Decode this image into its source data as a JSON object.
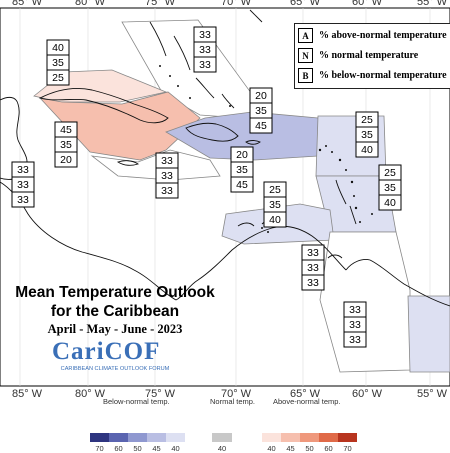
{
  "longitude_labels_top": [
    "85° W",
    "80° W",
    "75° W",
    "70° W",
    "65° W",
    "60° W",
    "55° W"
  ],
  "longitude_labels_bottom": [
    "85° W",
    "80° W",
    "75° W",
    "70° W",
    "65° W",
    "60° W",
    "55° W"
  ],
  "legend": {
    "above_letter": "A",
    "above_text": "% above-normal temperature",
    "normal_letter": "N",
    "normal_text": "% normal temperature",
    "below_letter": "B",
    "below_text": "% below-normal temperature"
  },
  "title_line1": "Mean Temperature Outlook",
  "title_line2": "for the Caribbean",
  "subtitle": "April - May - June - 2023",
  "logo": {
    "name": "CariCOF",
    "tagline": "CARIBBEAN CLIMATE OUTLOOK FORUM",
    "color": "#3a6fb7"
  },
  "probability_boxes": [
    {
      "region": "northwest-caribbean-belize",
      "above": "33",
      "normal": "33",
      "below": "33"
    },
    {
      "region": "bahamas",
      "above": "33",
      "normal": "33",
      "below": "33"
    },
    {
      "region": "cuba-west",
      "above": "40",
      "normal": "35",
      "below": "25"
    },
    {
      "region": "cuba-central-east",
      "above": "45",
      "normal": "35",
      "below": "20"
    },
    {
      "region": "turks-caicos",
      "above": "20",
      "normal": "35",
      "below": "45"
    },
    {
      "region": "hispaniola",
      "above": "20",
      "normal": "35",
      "below": "45"
    },
    {
      "region": "jamaica-cayman",
      "above": "33",
      "normal": "33",
      "below": "33"
    },
    {
      "region": "leeward-islands",
      "above": "25",
      "normal": "35",
      "below": "40"
    },
    {
      "region": "windward-islands",
      "above": "25",
      "normal": "35",
      "below": "40"
    },
    {
      "region": "abc-islands",
      "above": "25",
      "normal": "35",
      "below": "40"
    },
    {
      "region": "trinidad-tobago",
      "above": "33",
      "normal": "33",
      "below": "33"
    },
    {
      "region": "guianas",
      "above": "33",
      "normal": "33",
      "below": "33"
    }
  ],
  "colorbar": {
    "below_title": "Below-normal temp.",
    "normal_title": "Normal temp.",
    "above_title": "Above-normal temp.",
    "below_ticks": [
      "70",
      "60",
      "50",
      "45",
      "40"
    ],
    "normal_ticks": [
      "40"
    ],
    "above_ticks": [
      "40",
      "45",
      "50",
      "60",
      "70"
    ],
    "below_colors": [
      "#2e3580",
      "#5a64b0",
      "#8f98d0",
      "#b9bee3",
      "#dde0f2"
    ],
    "normal_colors": [
      "#c8c8c8"
    ],
    "above_colors": [
      "#fbe3dc",
      "#f6bfae",
      "#ef987c",
      "#e06a48",
      "#b8351f"
    ]
  }
}
